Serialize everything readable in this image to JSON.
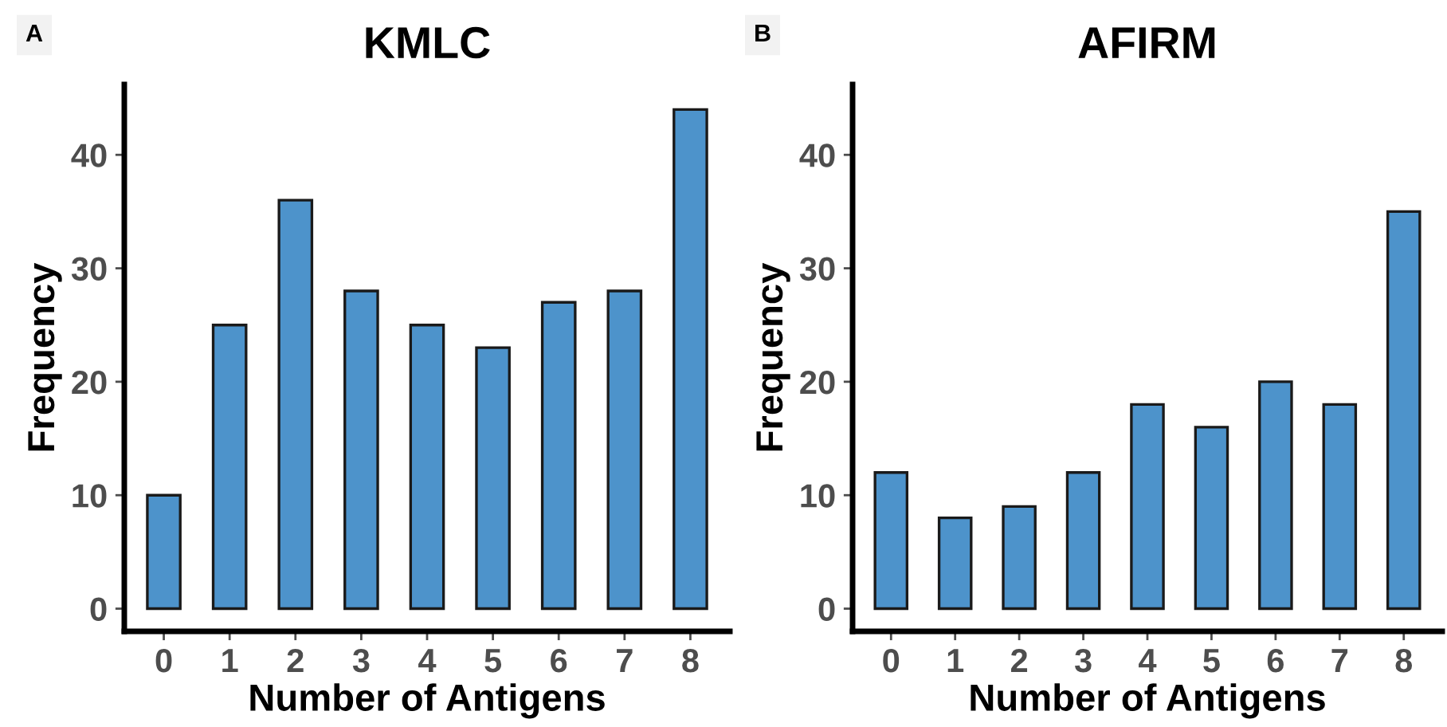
{
  "chart_data": [
    {
      "type": "bar",
      "title": "KMLC",
      "xlabel": "Number of Antigens",
      "ylabel": "Frequency",
      "annotations": [
        "A"
      ],
      "categories": [
        "0",
        "1",
        "2",
        "3",
        "4",
        "5",
        "6",
        "7",
        "8"
      ],
      "values": [
        10,
        25,
        36,
        28,
        25,
        23,
        27,
        28,
        44
      ],
      "color": "#4d93cb",
      "ylim": [
        -2,
        46.2
      ],
      "yticks": [
        0,
        10,
        20,
        30,
        40
      ],
      "grid": false,
      "legend": false
    },
    {
      "type": "bar",
      "title": "AFIRM",
      "xlabel": "Number of Antigens",
      "ylabel": "Frequency",
      "annotations": [
        "B"
      ],
      "categories": [
        "0",
        "1",
        "2",
        "3",
        "4",
        "5",
        "6",
        "7",
        "8"
      ],
      "values": [
        12,
        8,
        9,
        12,
        18,
        16,
        20,
        18,
        35
      ],
      "color": "#4d93cb",
      "ylim": [
        -2,
        46.2
      ],
      "yticks": [
        0,
        10,
        20,
        30,
        40
      ],
      "grid": false,
      "legend": false
    }
  ]
}
